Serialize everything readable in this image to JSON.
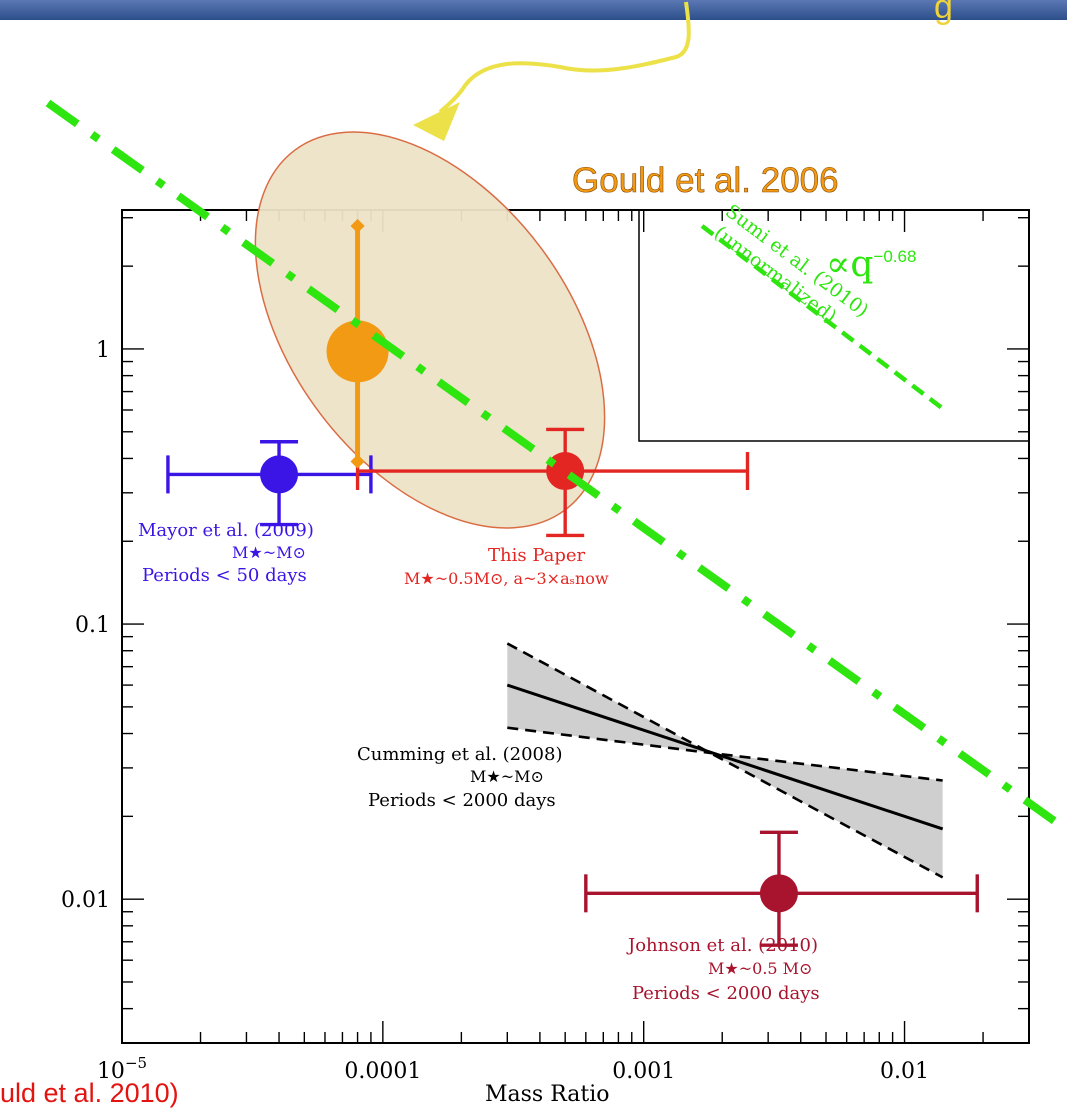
{
  "chart_data": {
    "type": "scatter",
    "title": "",
    "xlabel": "Mass Ratio",
    "ylabel": "",
    "x_scale": "log",
    "y_scale": "log",
    "xlim": [
      1e-05,
      0.03
    ],
    "ylim": [
      0.003,
      3.2
    ],
    "x_ticks": [
      {
        "value": 1e-05,
        "base": "10",
        "exponent": "−5"
      },
      {
        "value": 0.0001,
        "label": "0.0001"
      },
      {
        "value": 0.001,
        "label": "0.001"
      },
      {
        "value": 0.01,
        "label": "0.01"
      }
    ],
    "y_ticks": [
      {
        "value": 1,
        "label": "1"
      },
      {
        "value": 0.1,
        "label": "0.1"
      },
      {
        "value": 0.01,
        "label": "0.01"
      }
    ],
    "points": [
      {
        "name": "Mayor et al. (2009)",
        "note_lines": [
          "M★~M⊙",
          "Periods < 50 days"
        ],
        "x": 4e-05,
        "y": 0.35,
        "xerr": [
          1.5e-05,
          9e-05
        ],
        "yerr": [
          0.23,
          0.46
        ],
        "color": "#3b14e6"
      },
      {
        "name": "This Paper",
        "note_lines": [
          "M★~0.5M⊙, a~3×aₛnow"
        ],
        "x": 0.0005,
        "y": 0.36,
        "xerr": [
          8e-05,
          0.0025
        ],
        "yerr": [
          0.21,
          0.51
        ],
        "color": "#e32622"
      },
      {
        "name": "Johnson et al. (2010)",
        "note_lines": [
          "M★~0.5 M⊙",
          "Periods < 2000 days"
        ],
        "x": 0.0033,
        "y": 0.0105,
        "xerr": [
          0.0006,
          0.019
        ],
        "yerr": [
          0.0068,
          0.0175
        ],
        "color": "#a8132d"
      },
      {
        "name": "Gould et al. 2006",
        "x": 8e-05,
        "y": 0.98,
        "yerr": [
          0.39,
          2.8
        ],
        "color": "#f39a14"
      }
    ],
    "trend_band": {
      "name": "Cumming et al. (2008)",
      "note_lines": [
        "M★~M⊙",
        "Periods < 2000 days"
      ],
      "x": [
        0.0003,
        0.014
      ],
      "mid": [
        0.06,
        0.018
      ],
      "upper": [
        0.085,
        0.027
      ],
      "lower": [
        0.042,
        0.012
      ],
      "pivot_x": 0.0018,
      "pivot_y": 0.034
    },
    "sumi_slope_label": {
      "base": "∝q",
      "exponent": "−0.68"
    },
    "sumi_text": [
      "Sumi et al. (2010)",
      "(unnormalized)"
    ],
    "colors": {
      "frame": "#000000",
      "green": "#2ee50f",
      "band": "#cfcfcf",
      "ellipse_fill": "#ede3c8",
      "ellipse_stroke": "#d9653b"
    }
  },
  "overlay": {
    "banner_fragment_letter": "g",
    "bottom_citation": "uld et al. 2010)"
  }
}
